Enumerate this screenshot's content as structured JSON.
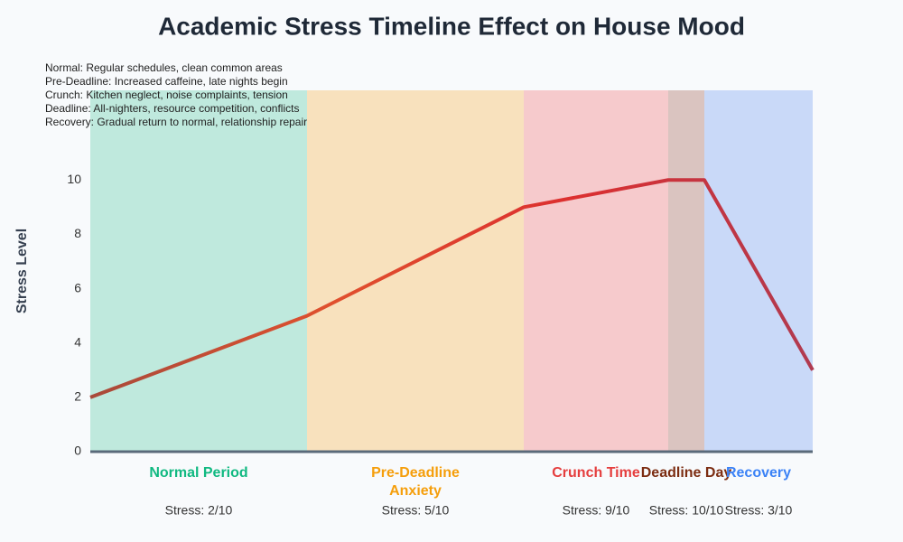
{
  "chart_data": {
    "type": "line",
    "title": "Academic Stress Timeline Effect on House Mood",
    "y_label": "Stress Level",
    "notes": [
      "Normal: Regular schedules, clean common areas",
      "Pre-Deadline: Increased caffeine, late nights begin",
      "Crunch: Kitchen neglect, noise complaints, tension",
      "Deadline: All-nighters, resource competition, conflicts",
      "Recovery: Gradual return to normal, relationship repair"
    ],
    "xlim": [
      0,
      20
    ],
    "ylim": [
      0,
      13.3
    ],
    "yticks": [
      0,
      2,
      4,
      6,
      8,
      10
    ],
    "grid": false,
    "phases": [
      {
        "name": "Normal Period",
        "start": 0,
        "end": 6,
        "color": "#bfe9dd",
        "text_color": "#10b981",
        "value": 2,
        "value_label": "Stress: 2/10"
      },
      {
        "name": "Pre-Deadline Anxiety",
        "start": 6,
        "end": 12,
        "color": "#f8e1bd",
        "text_color": "#f59e0b",
        "value": 5,
        "value_label": "Stress: 5/10"
      },
      {
        "name": "Crunch Time",
        "start": 12,
        "end": 16,
        "color": "#f6cacc",
        "text_color": "#e53e3e",
        "value": 9,
        "value_label": "Stress: 9/10"
      },
      {
        "name": "Deadline Day",
        "start": 16,
        "end": 17,
        "color": "#dac4c0",
        "text_color": "#7c2d12",
        "value": 10,
        "value_label": "Stress: 10/10"
      },
      {
        "name": "Recovery",
        "start": 17,
        "end": 20,
        "color": "#c9d9f8",
        "text_color": "#3b82f6",
        "value": 3,
        "value_label": "Stress: 3/10"
      }
    ],
    "series": [
      {
        "x": [
          0,
          6,
          12,
          16,
          17,
          20
        ],
        "values": [
          2,
          5,
          9,
          10,
          10,
          3
        ],
        "color_stops": [
          "#a84a3a",
          "#e0502e",
          "#dc2f2f",
          "#b03a50"
        ]
      }
    ]
  }
}
